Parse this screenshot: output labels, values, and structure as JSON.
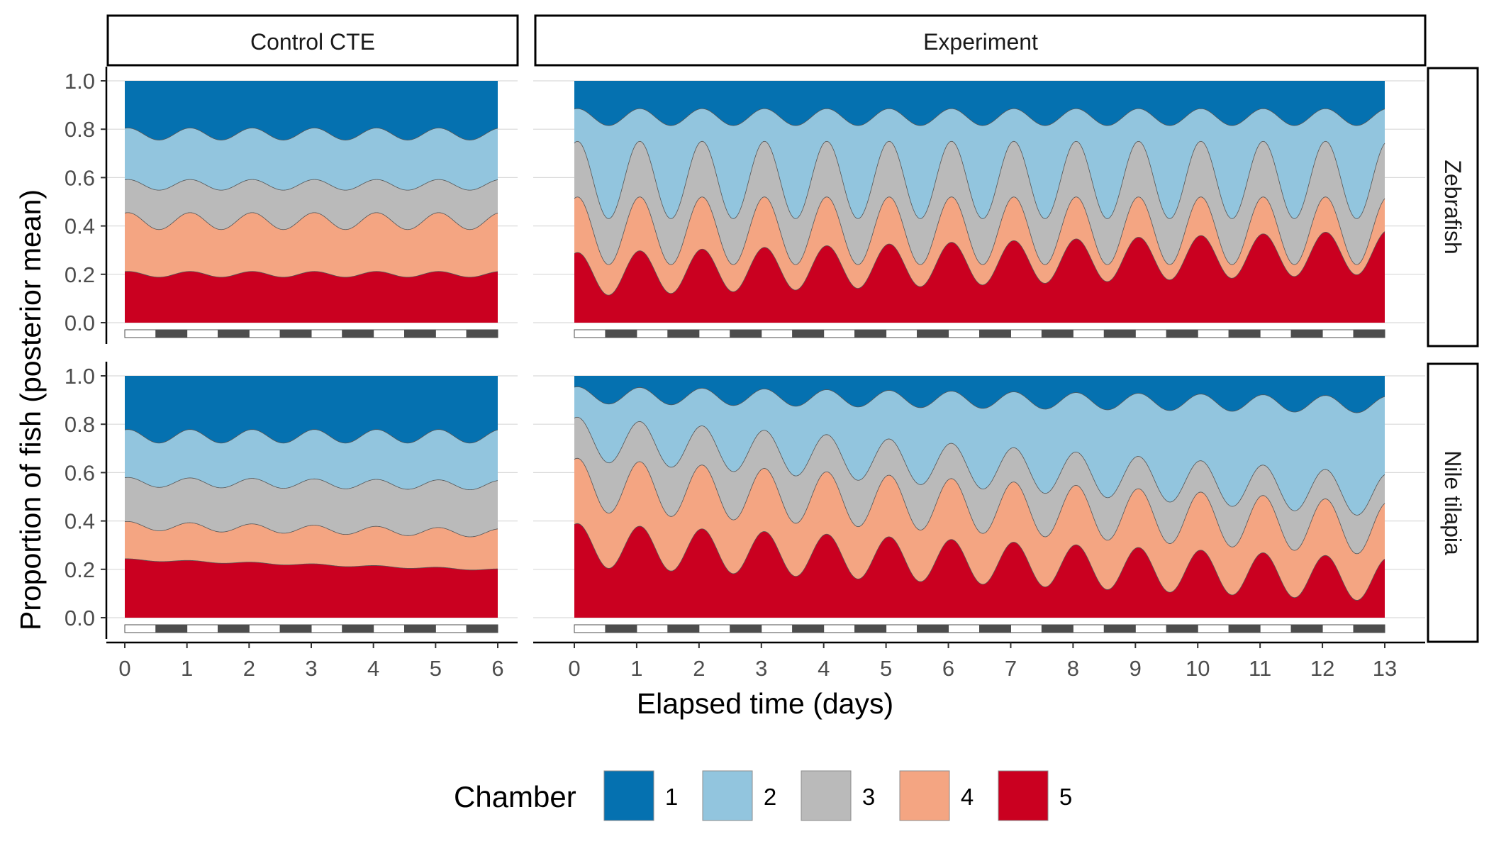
{
  "chart_data": {
    "type": "area",
    "stacked": true,
    "normalized": true,
    "ylabel": "Proportion of fish (posterior mean)",
    "xlabel": "Elapsed time (days)",
    "y_ticks": [
      "0.0",
      "0.2",
      "0.4",
      "0.6",
      "0.8",
      "1.0"
    ],
    "ylim": [
      0,
      1
    ],
    "columns": [
      {
        "label": "Control CTE",
        "xlim": [
          0,
          6
        ],
        "x_ticks": [
          "0",
          "1",
          "2",
          "3",
          "4",
          "5",
          "6"
        ]
      },
      {
        "label": "Experiment",
        "xlim": [
          0,
          13
        ],
        "x_ticks": [
          "0",
          "1",
          "2",
          "3",
          "4",
          "5",
          "6",
          "7",
          "8",
          "9",
          "10",
          "11",
          "12",
          "13"
        ]
      }
    ],
    "rows": [
      {
        "label": "Zebrafish"
      },
      {
        "label": "Nile tilapia"
      }
    ],
    "legend": {
      "title": "Chamber",
      "position": "bottom",
      "items": [
        {
          "label": "1",
          "color": "#0571b0"
        },
        {
          "label": "2",
          "color": "#92c5de"
        },
        {
          "label": "3",
          "color": "#bababa"
        },
        {
          "label": "4",
          "color": "#f4a582"
        },
        {
          "label": "5",
          "color": "#ca0020"
        }
      ]
    },
    "light_dark_bar": {
      "light": "#ffffff",
      "dark": "#4d4d4d",
      "cycle_days": 1
    },
    "panels": [
      {
        "row": "Zebrafish",
        "column": "Control CTE",
        "days": 6,
        "boundaries": [
          {
            "upper_of_chamber": "5",
            "mean": 0.2,
            "amp": 0.012,
            "trend": 0.0
          },
          {
            "upper_of_chamber": "4",
            "mean": 0.42,
            "amp": 0.035,
            "trend": 0.0
          },
          {
            "upper_of_chamber": "3",
            "mean": 0.57,
            "amp": 0.022,
            "trend": 0.0
          },
          {
            "upper_of_chamber": "2",
            "mean": 0.78,
            "amp": 0.025,
            "trend": 0.0
          }
        ]
      },
      {
        "row": "Zebrafish",
        "column": "Experiment",
        "days": 13,
        "boundaries": [
          {
            "upper_of_chamber": "5",
            "mean": 0.2,
            "amp": 0.09,
            "trend": 0.007
          },
          {
            "upper_of_chamber": "4",
            "mean": 0.38,
            "amp": 0.14,
            "trend": 0.0
          },
          {
            "upper_of_chamber": "3",
            "mean": 0.59,
            "amp": 0.16,
            "trend": 0.0
          },
          {
            "upper_of_chamber": "2",
            "mean": 0.85,
            "amp": 0.035,
            "trend": 0.0
          }
        ]
      },
      {
        "row": "Nile tilapia",
        "column": "Control CTE",
        "days": 6,
        "boundaries": [
          {
            "upper_of_chamber": "5",
            "mean": 0.24,
            "amp": 0.004,
            "trend": -0.007
          },
          {
            "upper_of_chamber": "4",
            "mean": 0.38,
            "amp": 0.018,
            "trend": -0.005
          },
          {
            "upper_of_chamber": "3",
            "mean": 0.56,
            "amp": 0.02,
            "trend": -0.002
          },
          {
            "upper_of_chamber": "2",
            "mean": 0.75,
            "amp": 0.028,
            "trend": 0.0
          }
        ]
      },
      {
        "row": "Nile tilapia",
        "column": "Experiment",
        "days": 13,
        "boundaries": [
          {
            "upper_of_chamber": "5",
            "mean": 0.3,
            "amp": 0.09,
            "trend": -0.011
          },
          {
            "upper_of_chamber": "4",
            "mean": 0.55,
            "amp": 0.11,
            "trend": -0.014
          },
          {
            "upper_of_chamber": "3",
            "mean": 0.74,
            "amp": 0.09,
            "trend": -0.018
          },
          {
            "upper_of_chamber": "2",
            "mean": 0.92,
            "amp": 0.035,
            "trend": -0.003
          }
        ]
      }
    ]
  }
}
